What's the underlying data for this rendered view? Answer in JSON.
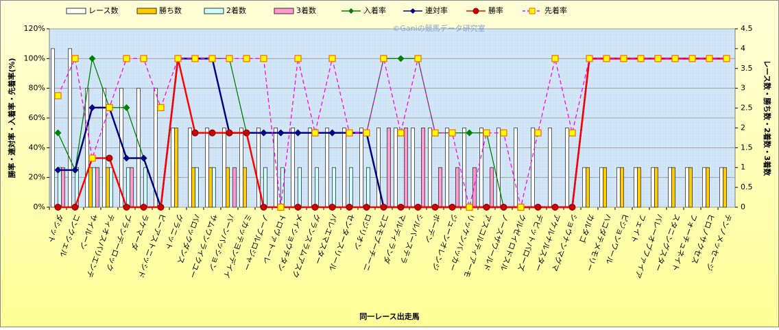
{
  "chart_data": {
    "type": "bar",
    "title": "©Ganiの競馬データ研究室",
    "x_label": "同一レース出走馬",
    "y_label": "勝率・連対率・入着率・先着率(%)",
    "y2_label": "レース数・勝ち数・2着数・3着数",
    "categories": [
      "ダシット",
      "コンクシェル",
      "サイルーン",
      "ティオスパリエンテ",
      "ブランデーロック",
      "ラケマーダ",
      "ビーアストニッシド",
      "グラニット",
      "バロックダンス",
      "サムワンライクユー",
      "バーンパッション",
      "ミカッテヨンデイイ",
      "ノーブルロジャー",
      "トロヴァトーレ",
      "メイショウチタン",
      "グランスラムアスク",
      "パレエマスター",
      "センタースリール",
      "ロジリオン",
      "コスモプーチーニ",
      "マルディランダ",
      "シルバーステラ",
      "ボーデン",
      "ジューンオレンジ",
      "リッケンバッカー",
      "アスコルティアーモ",
      "ノースザワールド",
      "クルゼイロドスル",
      "デビットバローズ",
      "アケルナルスター",
      "ショウナンマグマ",
      "カルタゴ",
      "ハコダテメモリー",
      "ピジョンワール",
      "フェイト",
      "バレーオブファイア",
      "スタニングスター",
      "フォーチュネイト",
      "ヒロノサクセス",
      "テンノメッセージ"
    ],
    "series": [
      {
        "name": "レース数",
        "type": "bar",
        "axis": "y2",
        "color": "#ffffff",
        "values": [
          4,
          4,
          3,
          3,
          3,
          3,
          3,
          2,
          2,
          2,
          2,
          2,
          2,
          2,
          2,
          2,
          2,
          2,
          2,
          2,
          2,
          2,
          2,
          2,
          2,
          2,
          2,
          2,
          2,
          2,
          2,
          1,
          1,
          1,
          1,
          1,
          1,
          1,
          1,
          1
        ]
      },
      {
        "name": "勝ち数",
        "type": "bar",
        "axis": "y2",
        "color": "#ffcc00",
        "values": [
          0,
          0,
          1,
          1,
          0,
          0,
          0,
          2,
          1,
          1,
          1,
          1,
          0,
          0,
          0,
          0,
          0,
          0,
          0,
          0,
          0,
          0,
          0,
          0,
          0,
          0,
          0,
          0,
          0,
          0,
          0,
          1,
          1,
          1,
          1,
          1,
          1,
          1,
          1,
          1
        ]
      },
      {
        "name": "2着数",
        "type": "bar",
        "axis": "y2",
        "color": "#ccffff",
        "values": [
          1,
          1,
          1,
          1,
          1,
          1,
          0,
          0,
          1,
          1,
          0,
          0,
          1,
          1,
          1,
          1,
          1,
          1,
          1,
          0,
          0,
          0,
          0,
          0,
          0,
          0,
          0,
          0,
          0,
          0,
          0,
          0,
          0,
          0,
          0,
          0,
          0,
          0,
          0,
          0
        ]
      },
      {
        "name": "3着数",
        "type": "bar",
        "axis": "y2",
        "color": "#ff99cc",
        "values": [
          1,
          0,
          1,
          0,
          1,
          0,
          0,
          0,
          0,
          0,
          1,
          0,
          0,
          0,
          0,
          0,
          0,
          0,
          0,
          2,
          2,
          2,
          1,
          1,
          1,
          1,
          0,
          0,
          0,
          0,
          0,
          0,
          0,
          0,
          0,
          0,
          0,
          0,
          0,
          0
        ]
      },
      {
        "name": "入着率",
        "type": "line",
        "color": "#008000",
        "marker": "diamond",
        "values": [
          50,
          25,
          100,
          67,
          67,
          33,
          0,
          100,
          100,
          100,
          100,
          50,
          50,
          50,
          50,
          50,
          50,
          50,
          50,
          100,
          100,
          100,
          50,
          50,
          50,
          50,
          0,
          0,
          0,
          0,
          0,
          100,
          100,
          100,
          100,
          100,
          100,
          100,
          100,
          100
        ]
      },
      {
        "name": "連対率",
        "type": "line",
        "color": "#000080",
        "marker": "diamond",
        "values": [
          25,
          25,
          67,
          67,
          33,
          33,
          0,
          100,
          100,
          100,
          50,
          50,
          50,
          50,
          50,
          50,
          50,
          50,
          50,
          0,
          0,
          0,
          0,
          0,
          0,
          0,
          0,
          0,
          0,
          0,
          0,
          100,
          100,
          100,
          100,
          100,
          100,
          100,
          100,
          100
        ]
      },
      {
        "name": "勝率",
        "type": "line",
        "color": "#ff0000",
        "marker": "circle",
        "values": [
          0,
          0,
          33,
          33,
          0,
          0,
          0,
          100,
          50,
          50,
          50,
          50,
          0,
          0,
          0,
          0,
          0,
          0,
          0,
          0,
          0,
          0,
          0,
          0,
          0,
          0,
          0,
          0,
          0,
          0,
          0,
          100,
          100,
          100,
          100,
          100,
          100,
          100,
          100,
          100
        ]
      },
      {
        "name": "先着率",
        "type": "line",
        "color": "#ff00ff",
        "marker": "square",
        "dashed": true,
        "values": [
          75,
          100,
          33,
          67,
          100,
          100,
          67,
          100,
          100,
          100,
          100,
          100,
          100,
          0,
          100,
          50,
          100,
          50,
          50,
          100,
          50,
          100,
          50,
          50,
          0,
          50,
          50,
          0,
          50,
          100,
          50,
          100,
          100,
          100,
          100,
          100,
          100,
          100,
          100,
          100
        ]
      }
    ],
    "ylim": [
      0,
      120
    ],
    "yticks": [
      {
        "value": 0,
        "label": "0%"
      },
      {
        "value": 20,
        "label": "20%"
      },
      {
        "value": 40,
        "label": "40%"
      },
      {
        "value": 60,
        "label": "60%"
      },
      {
        "value": 80,
        "label": "80%"
      },
      {
        "value": 100,
        "label": "100%"
      },
      {
        "value": 120,
        "label": "120%"
      }
    ],
    "y2lim": [
      0,
      4.5
    ],
    "y2ticks": [
      0,
      0.5,
      1,
      1.5,
      2,
      2.5,
      3,
      3.5,
      4,
      4.5
    ],
    "grid": true
  }
}
